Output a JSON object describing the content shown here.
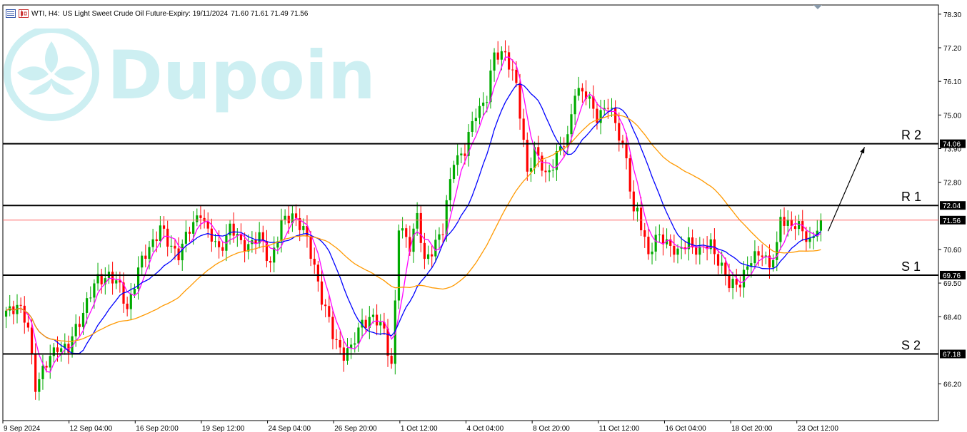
{
  "header": {
    "symbol": "WTI, H4:",
    "description": "US Light Sweet Crude Oil Future-Expiry: 19/11/2024",
    "ohlc": "71.60 71.61 71.49 71.56",
    "menu_icon": "chart-menu-icon",
    "chart_icon": "candles-icon"
  },
  "watermark": {
    "text": "Dupoin",
    "color": "#cdeff2"
  },
  "chart_data": {
    "type": "candlestick",
    "timeframe": "H4",
    "symbol": "WTI",
    "ylim": [
      65.0,
      78.6
    ],
    "y_ticks": [
      "78.30",
      "77.20",
      "76.10",
      "75.00",
      "73.90",
      "72.80",
      "70.60",
      "69.50",
      "68.40",
      "66.20"
    ],
    "x_ticks": [
      "9 Sep 2024",
      "12 Sep 04:00",
      "16 Sep 20:00",
      "19 Sep 12:00",
      "24 Sep 04:00",
      "26 Sep 20:00",
      "1 Oct 12:00",
      "4 Oct 04:00",
      "8 Oct 20:00",
      "11 Oct 12:00",
      "16 Oct 04:00",
      "18 Oct 20:00",
      "23 Oct 12:00"
    ],
    "current_price": "71.56",
    "levels": [
      {
        "label": "R 2",
        "value": 74.06,
        "tag": "74.06"
      },
      {
        "label": "R 1",
        "value": 72.04,
        "tag": "72.04"
      },
      {
        "label": "S 1",
        "value": 69.76,
        "tag": "69.76"
      },
      {
        "label": "S 2",
        "value": 67.18,
        "tag": "67.18"
      }
    ],
    "moving_averages": [
      {
        "color": "#ff00ff"
      },
      {
        "color": "#0000ff"
      },
      {
        "color": "#ff9900"
      }
    ],
    "colors": {
      "bull": "#00aa00",
      "bear": "#ff0000",
      "level": "#000000",
      "price_line": "#ff6666",
      "price_tag": "#000000"
    },
    "anchors": [
      [
        0,
        68.6
      ],
      [
        3,
        68.8
      ],
      [
        6,
        68.0
      ],
      [
        8,
        66.2
      ],
      [
        11,
        66.8
      ],
      [
        14,
        67.5
      ],
      [
        17,
        67.3
      ],
      [
        19,
        68.0
      ],
      [
        22,
        68.9
      ],
      [
        25,
        69.6
      ],
      [
        28,
        69.8
      ],
      [
        31,
        69.3
      ],
      [
        33,
        68.7
      ],
      [
        36,
        69.9
      ],
      [
        39,
        70.7
      ],
      [
        42,
        71.3
      ],
      [
        44,
        70.8
      ],
      [
        47,
        70.5
      ],
      [
        50,
        71.2
      ],
      [
        53,
        71.9
      ],
      [
        55,
        71.1
      ],
      [
        58,
        70.6
      ],
      [
        61,
        71.3
      ],
      [
        64,
        70.8
      ],
      [
        67,
        70.8
      ],
      [
        69,
        71.0
      ],
      [
        72,
        70.2
      ],
      [
        75,
        71.4
      ],
      [
        78,
        71.8
      ],
      [
        81,
        71.2
      ],
      [
        84,
        70.1
      ],
      [
        86,
        69.0
      ],
      [
        89,
        67.8
      ],
      [
        92,
        67.2
      ],
      [
        94,
        67.3
      ],
      [
        97,
        68.3
      ],
      [
        100,
        68.3
      ],
      [
        103,
        68.0
      ],
      [
        105,
        66.8
      ],
      [
        106,
        68.8
      ],
      [
        107,
        71.3
      ],
      [
        110,
        70.8
      ],
      [
        112,
        71.7
      ],
      [
        114,
        70.1
      ],
      [
        117,
        70.9
      ],
      [
        119,
        71.2
      ],
      [
        122,
        73.6
      ],
      [
        125,
        73.8
      ],
      [
        128,
        75.1
      ],
      [
        131,
        75.6
      ],
      [
        133,
        76.9
      ],
      [
        136,
        77.1
      ],
      [
        139,
        75.9
      ],
      [
        142,
        73.2
      ],
      [
        144,
        73.8
      ],
      [
        147,
        73.0
      ],
      [
        150,
        73.7
      ],
      [
        153,
        74.2
      ],
      [
        155,
        75.9
      ],
      [
        158,
        75.6
      ],
      [
        161,
        75.0
      ],
      [
        164,
        75.3
      ],
      [
        167,
        74.4
      ],
      [
        169,
        73.6
      ],
      [
        171,
        71.6
      ],
      [
        172,
        71.9
      ],
      [
        175,
        70.5
      ],
      [
        178,
        71.0
      ],
      [
        181,
        70.8
      ],
      [
        183,
        70.4
      ],
      [
        186,
        70.9
      ],
      [
        189,
        70.5
      ],
      [
        192,
        70.8
      ],
      [
        194,
        70.3
      ],
      [
        197,
        69.4
      ],
      [
        200,
        69.6
      ],
      [
        203,
        70.2
      ],
      [
        206,
        70.6
      ],
      [
        208,
        70.0
      ],
      [
        210,
        70.6
      ],
      [
        211,
        71.7
      ],
      [
        214,
        71.4
      ],
      [
        217,
        71.2
      ],
      [
        219,
        70.9
      ],
      [
        221,
        71.3
      ],
      [
        222,
        71.56
      ]
    ],
    "arrow": {
      "from": [
        222,
        71.2
      ],
      "to": [
        230,
        73.95
      ]
    }
  }
}
